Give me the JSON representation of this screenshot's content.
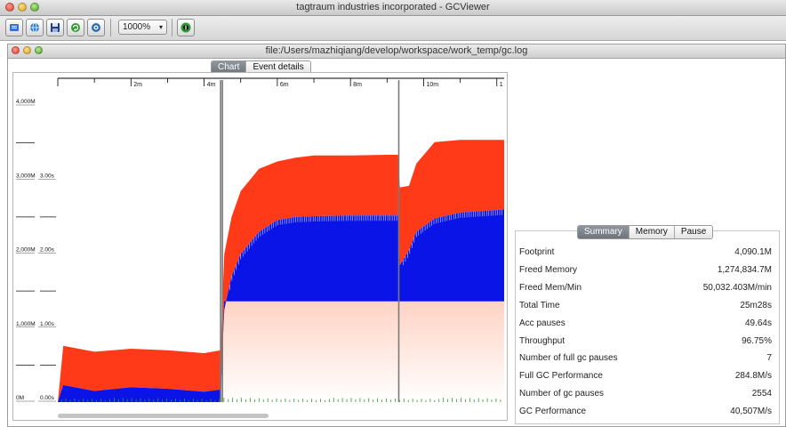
{
  "app": {
    "title": "tagtraum industries incorporated - GCViewer",
    "zoom_value": "1000%"
  },
  "toolbar": {
    "buttons": [
      {
        "name": "open-file-icon",
        "color": "#3b6fd1"
      },
      {
        "name": "open-url-icon",
        "color": "#2d7fc9"
      },
      {
        "name": "export-icon",
        "color": "#1f3f8a"
      },
      {
        "name": "refresh-icon",
        "color": "#2f9a2f"
      },
      {
        "name": "watch-icon",
        "color": "#2f6fb5"
      },
      {
        "name": "info-icon",
        "color": "#2f9a2f"
      }
    ]
  },
  "document": {
    "title": "file:/Users/mazhiqiang/develop/workspace/work_temp/gc.log",
    "tabs": [
      "Chart",
      "Event details"
    ],
    "active_tab": "Chart"
  },
  "summary": {
    "tabs": [
      "Summary",
      "Memory",
      "Pause"
    ],
    "active_tab": "Summary",
    "rows": [
      {
        "label": "Footprint",
        "value": "4,090.1M"
      },
      {
        "label": "Freed Memory",
        "value": "1,274,834.7M"
      },
      {
        "label": "Freed Mem/Min",
        "value": "50,032.403M/min"
      },
      {
        "label": "Total Time",
        "value": "25m28s"
      },
      {
        "label": "Acc pauses",
        "value": "49.64s"
      },
      {
        "label": "Throughput",
        "value": "96.75%"
      },
      {
        "label": "Number of full gc pauses",
        "value": "7"
      },
      {
        "label": "Full GC Performance",
        "value": "284.8M/s"
      },
      {
        "label": "Number of gc pauses",
        "value": "2554"
      },
      {
        "label": "GC Performance",
        "value": "40,507M/s"
      }
    ]
  },
  "chart_data": {
    "type": "area",
    "x_unit": "minutes",
    "x_tick_labels": [
      "2m",
      "4m",
      "6m",
      "8m",
      "10m",
      "1"
    ],
    "x_ticks_minutes": [
      2,
      4,
      6,
      8,
      10,
      12
    ],
    "xlim": [
      0,
      12.2
    ],
    "memory_tick_labels": [
      "0M",
      "1,000M",
      "2,000M",
      "3,000M",
      "4,000M"
    ],
    "memory_ticks": [
      0,
      1000,
      2000,
      3000,
      4000
    ],
    "pause_tick_labels": [
      "0.00s",
      "1.00s",
      "2.00s",
      "3.00s"
    ],
    "pause_ticks": [
      0,
      1,
      2,
      3
    ],
    "ylim_memory": [
      0,
      4000
    ],
    "colors": {
      "total_heap": "#ff3a18",
      "used_heap": "#0a14e6",
      "tenured": "#ffd3c4",
      "full_gc_line": "#7a7a7a",
      "gc_pause_line": "#2e9b2e",
      "axis": "#000000"
    },
    "series": [
      {
        "key": "total_heap",
        "x": [
          0,
          0.15,
          1.0,
          2.0,
          3.0,
          4.0,
          4.45,
          4.55,
          4.75,
          5.0,
          5.5,
          6.0,
          6.5,
          7.0,
          8.0,
          9.0,
          9.3,
          9.35,
          9.6,
          9.8,
          10.3,
          11.0,
          12.2
        ],
        "values": [
          0,
          760,
          680,
          720,
          700,
          660,
          700,
          2000,
          2500,
          2850,
          3150,
          3250,
          3300,
          3330,
          3330,
          3340,
          3340,
          2900,
          2920,
          3220,
          3510,
          3540,
          3540
        ]
      },
      {
        "key": "used_heap",
        "x": [
          0,
          0.15,
          1.0,
          2.0,
          3.0,
          4.0,
          4.45,
          4.55,
          4.75,
          5.0,
          5.5,
          6.0,
          6.5,
          7.0,
          8.0,
          9.0,
          9.3,
          9.35,
          9.6,
          9.8,
          10.3,
          11.0,
          12.2
        ],
        "values": [
          0,
          230,
          150,
          200,
          180,
          140,
          170,
          1250,
          1700,
          2000,
          2300,
          2460,
          2500,
          2510,
          2520,
          2520,
          2520,
          1850,
          2050,
          2300,
          2480,
          2560,
          2600
        ]
      },
      {
        "key": "tenured",
        "x": [
          4.45,
          4.55,
          9.3,
          9.35,
          12.2
        ],
        "values": [
          0,
          1360,
          1360,
          1360,
          1360
        ]
      }
    ],
    "full_gc_markers_minutes": [
      4.45,
      4.5,
      9.32
    ],
    "grid": false,
    "legend": "none"
  }
}
